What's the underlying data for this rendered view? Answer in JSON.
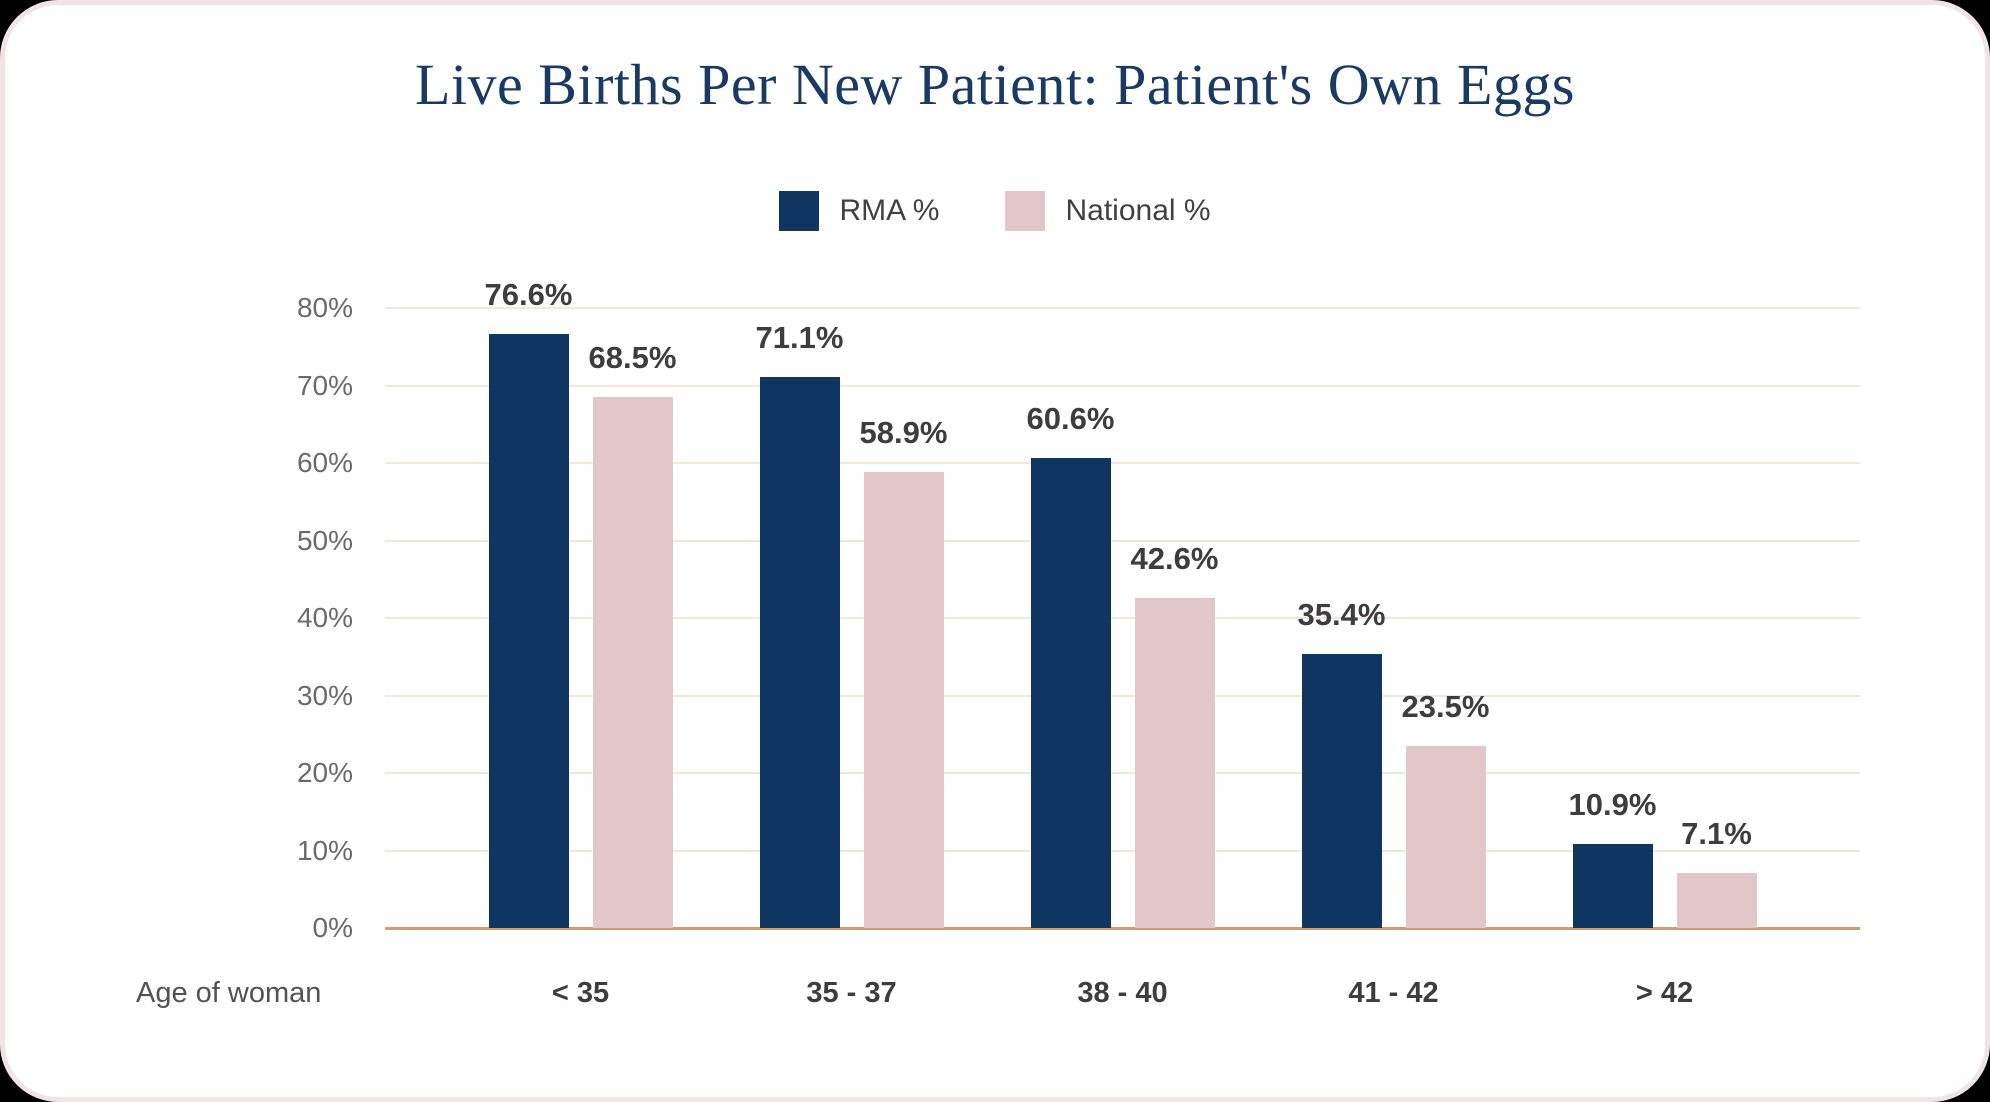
{
  "title": "Live Births Per New Patient: Patient's Own Eggs",
  "x_axis_title": "Age of woman",
  "legend": {
    "items": [
      {
        "label": "RMA %"
      },
      {
        "label": "National %"
      }
    ]
  },
  "chart_data": {
    "type": "bar",
    "title": "Live Births Per New Patient: Patient's Own Eggs",
    "categories": [
      "< 35",
      "35 - 37",
      "38 - 40",
      "41 - 42",
      "> 42"
    ],
    "series": [
      {
        "name": "RMA %",
        "color": "#0f3660",
        "values": [
          76.6,
          71.1,
          60.6,
          35.4,
          10.9
        ]
      },
      {
        "name": "National %",
        "color": "#e2c7ca",
        "values": [
          68.5,
          58.9,
          42.6,
          23.5,
          7.1
        ]
      }
    ],
    "xlabel": "Age of woman",
    "ylabel": "",
    "ylim": [
      0,
      80
    ],
    "y_tick_labels": [
      "0%",
      "10%",
      "20%",
      "30%",
      "40%",
      "50%",
      "60%",
      "70%",
      "80%"
    ],
    "grid": true,
    "legend_position": "top",
    "data_labels": true,
    "data_label_suffix": "%"
  },
  "colors": {
    "card_background": "#ffffff",
    "card_border": "#f2e3e7",
    "gridline": "#f4e6d8",
    "axis_line": "#c9a16f",
    "title_text": "#1a3a66",
    "tick_text": "#6a6a6a",
    "data_label_text": "#3d3d3d",
    "category_text": "#3d3d3d"
  }
}
